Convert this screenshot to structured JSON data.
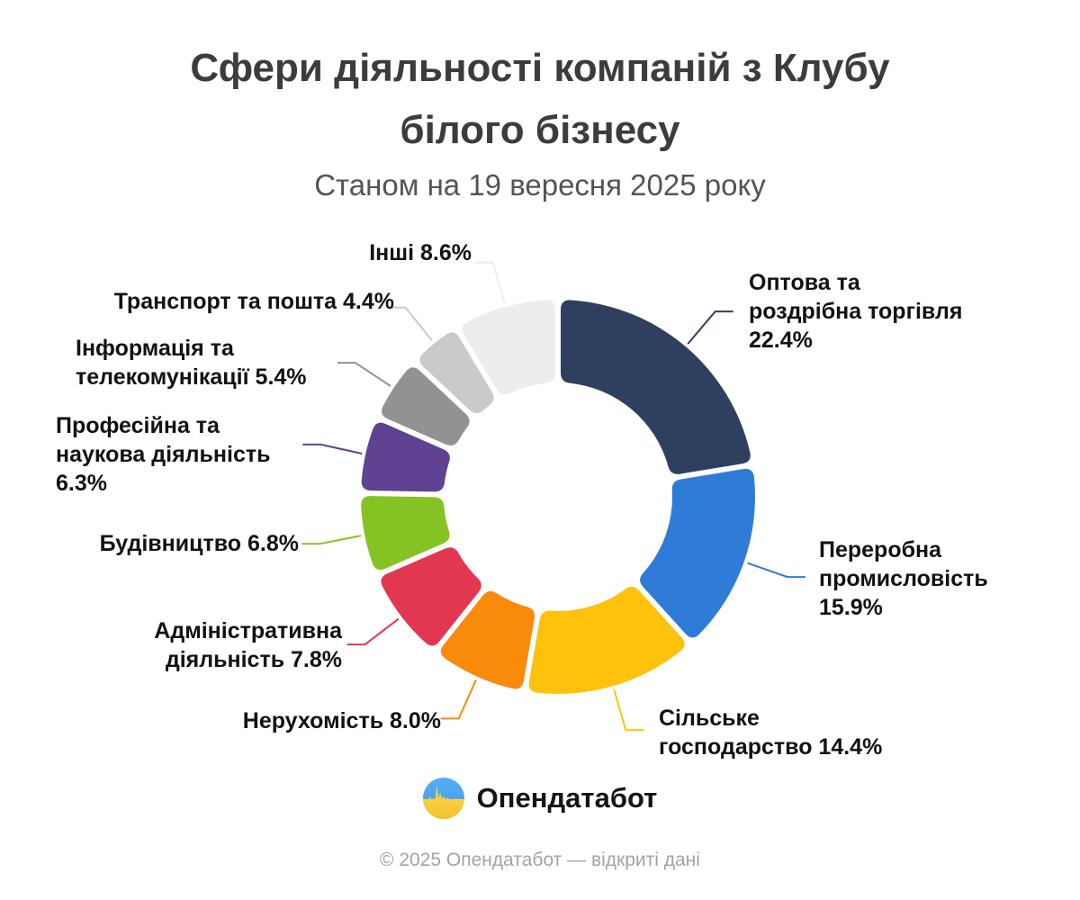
{
  "header": {
    "title_line1": "Сфери діяльності компаній з Клубу",
    "title_line2": "білого бізнесу",
    "subtitle": "Станом на 19 вересня 2025 року"
  },
  "chart_data": {
    "type": "pie",
    "donut": true,
    "title": "Сфери діяльності компаній з Клубу білого бізнесу",
    "subtitle": "Станом на 19 вересня 2025 року",
    "unit": "%",
    "start_angle_deg": -90,
    "direction": "clockwise",
    "labels_position": "outside-with-leader-lines",
    "slices": [
      {
        "name": "Оптова та роздрібна торгівля",
        "value": 22.4,
        "color": "#2e3f60",
        "lines": [
          "Оптова та",
          "роздрібна торгівля",
          "22.4%"
        ]
      },
      {
        "name": "Переробна промисловість",
        "value": 15.9,
        "color": "#2e7cd8",
        "lines": [
          "Переробна",
          "промисловість",
          "15.9%"
        ]
      },
      {
        "name": "Сільське господарство",
        "value": 14.4,
        "color": "#fec20d",
        "lines": [
          "Сільське",
          "господарство 14.4%"
        ]
      },
      {
        "name": "Нерухомість",
        "value": 8.0,
        "color": "#f98a0b",
        "lines": [
          "Нерухомість 8.0%"
        ]
      },
      {
        "name": "Адміністративна діяльність",
        "value": 7.8,
        "color": "#e23750",
        "lines": [
          "Адміністративна",
          "діяльність 7.8%"
        ]
      },
      {
        "name": "Будівництво",
        "value": 6.8,
        "color": "#85c324",
        "lines": [
          "Будівництво 6.8%"
        ]
      },
      {
        "name": "Професійна та наукова діяльність",
        "value": 6.3,
        "color": "#5f4392",
        "lines": [
          "Професійна та",
          "наукова діяльність",
          "6.3%"
        ]
      },
      {
        "name": "Інформація та телекомунікації",
        "value": 5.4,
        "color": "#929294",
        "lines": [
          "Інформація та",
          "телекомунікації 5.4%"
        ]
      },
      {
        "name": "Транспорт та пошта",
        "value": 4.4,
        "color": "#cacacc",
        "lines": [
          "Транспорт та пошта 4.4%"
        ]
      },
      {
        "name": "Інші",
        "value": 8.6,
        "color": "#ededee",
        "lines": [
          "Інші 8.6%"
        ]
      }
    ]
  },
  "footer": {
    "logo_text": "Опендатабот",
    "copyright": "© 2025 Опендатабот — відкриті дані",
    "logo_colors": {
      "blue_top": "#55aef5",
      "blue_bottom": "#3e9aea",
      "yellow_top": "#ffd94f",
      "yellow_bottom": "#f4c02f"
    }
  }
}
